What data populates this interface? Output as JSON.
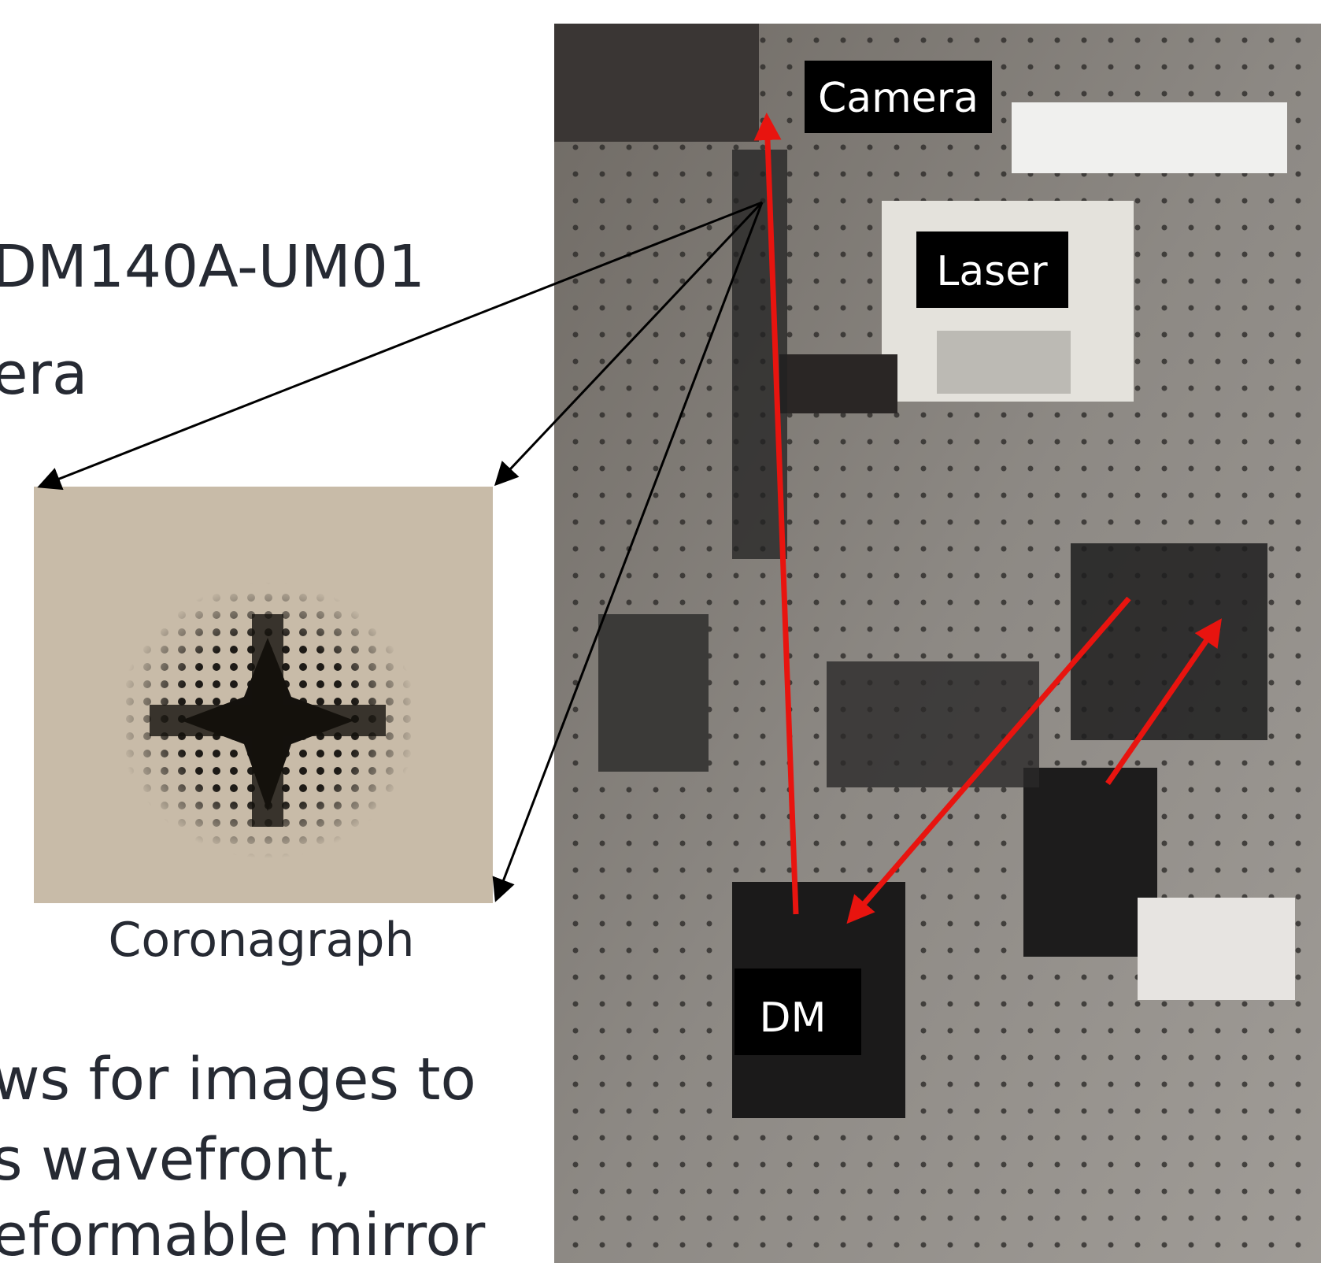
{
  "slide": {
    "top_lines": [
      "DM140A-UM01",
      "era"
    ],
    "caption": "Coronagraph",
    "bottom_lines": [
      "ws for images to",
      "s wavefront,",
      "eformable mirror"
    ],
    "photo_labels": {
      "camera": "Camera",
      "laser": "Laser",
      "dm": "DM"
    }
  }
}
